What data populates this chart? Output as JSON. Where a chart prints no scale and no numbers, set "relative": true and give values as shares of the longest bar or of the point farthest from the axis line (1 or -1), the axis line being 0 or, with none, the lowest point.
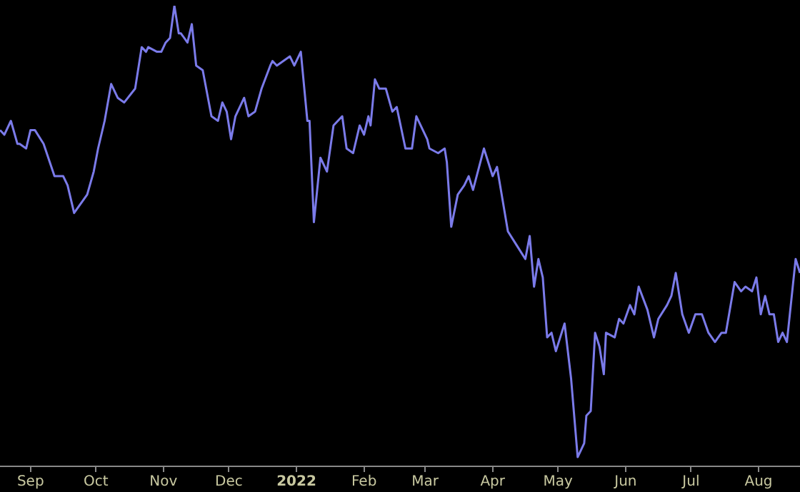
{
  "chart_data": {
    "type": "line",
    "relative": true,
    "grid": false,
    "legend": false,
    "marker": "none",
    "line_style": "solid",
    "tick_labels": "x",
    "xlim": [
      "2021-08-18",
      "2022-08-20"
    ],
    "xticks": [
      {
        "value": "2021-09",
        "label": "Sep"
      },
      {
        "value": "2021-10",
        "label": "Oct"
      },
      {
        "value": "2021-11",
        "label": "Nov"
      },
      {
        "value": "2021-12",
        "label": "Dec"
      },
      {
        "value": "2022",
        "label": "2022"
      },
      {
        "value": "2022-02",
        "label": "Feb"
      },
      {
        "value": "2022-03",
        "label": "Mar"
      },
      {
        "value": "2022-04",
        "label": "Apr"
      },
      {
        "value": "2022-05",
        "label": "May"
      },
      {
        "value": "2022-06",
        "label": "Jun"
      },
      {
        "value": "2022-07",
        "label": "Jul"
      },
      {
        "value": "2022-08",
        "label": "Aug"
      }
    ],
    "series": [
      {
        "color": "#7b7bea",
        "x": [
          "2021-08-18",
          "2021-08-20",
          "2021-08-23",
          "2021-08-26",
          "2021-08-27",
          "2021-08-30",
          "2021-09-01",
          "2021-09-03",
          "2021-09-07",
          "2021-09-12",
          "2021-09-16",
          "2021-09-18",
          "2021-09-21",
          "2021-09-27",
          "2021-09-30",
          "2021-10-02",
          "2021-10-05",
          "2021-10-08",
          "2021-10-11",
          "2021-10-14",
          "2021-10-19",
          "2021-10-22",
          "2021-10-24",
          "2021-10-25",
          "2021-10-29",
          "2021-10-31",
          "2021-11-02",
          "2021-11-04",
          "2021-11-06",
          "2021-11-08",
          "2021-11-09",
          "2021-11-12",
          "2021-11-14",
          "2021-11-16",
          "2021-11-19",
          "2021-11-23",
          "2021-11-26",
          "2021-11-28",
          "2021-11-30",
          "2021-12-02",
          "2021-12-04",
          "2021-12-08",
          "2021-12-10",
          "2021-12-13",
          "2021-12-16",
          "2021-12-20",
          "2021-12-21",
          "2021-12-23",
          "2021-12-26",
          "2021-12-29",
          "2021-12-31",
          "2022-01-03",
          "2022-01-06",
          "2022-01-07",
          "2022-01-09",
          "2022-01-12",
          "2022-01-15",
          "2022-01-18",
          "2022-01-22",
          "2022-01-24",
          "2022-01-27",
          "2022-01-30",
          "2022-02-01",
          "2022-02-03",
          "2022-02-04",
          "2022-02-06",
          "2022-02-08",
          "2022-02-11",
          "2022-02-14",
          "2022-02-16",
          "2022-02-20",
          "2022-02-23",
          "2022-02-25",
          "2022-03-02",
          "2022-03-03",
          "2022-03-07",
          "2022-03-10",
          "2022-03-11",
          "2022-03-13",
          "2022-03-16",
          "2022-03-19",
          "2022-03-21",
          "2022-03-23",
          "2022-03-28",
          "2022-04-01",
          "2022-04-03",
          "2022-04-08",
          "2022-04-12",
          "2022-04-16",
          "2022-04-18",
          "2022-04-20",
          "2022-04-22",
          "2022-04-24",
          "2022-04-26",
          "2022-04-28",
          "2022-04-30",
          "2022-05-02",
          "2022-05-04",
          "2022-05-07",
          "2022-05-10",
          "2022-05-13",
          "2022-05-14",
          "2022-05-16",
          "2022-05-18",
          "2022-05-20",
          "2022-05-22",
          "2022-05-23",
          "2022-05-27",
          "2022-05-29",
          "2022-05-31",
          "2022-06-03",
          "2022-06-05",
          "2022-06-07",
          "2022-06-11",
          "2022-06-14",
          "2022-06-16",
          "2022-06-20",
          "2022-06-22",
          "2022-06-24",
          "2022-06-27",
          "2022-06-30",
          "2022-07-03",
          "2022-07-06",
          "2022-07-09",
          "2022-07-12",
          "2022-07-15",
          "2022-07-17",
          "2022-07-21",
          "2022-07-24",
          "2022-07-26",
          "2022-07-29",
          "2022-07-31",
          "2022-08-02",
          "2022-08-04",
          "2022-08-06",
          "2022-08-08",
          "2022-08-10",
          "2022-08-12",
          "2022-08-14",
          "2022-08-18",
          "2022-08-20"
        ],
        "values": [
          0.73,
          0.72,
          0.75,
          0.7,
          0.7,
          0.69,
          0.73,
          0.73,
          0.7,
          0.63,
          0.63,
          0.61,
          0.55,
          0.59,
          0.64,
          0.69,
          0.75,
          0.83,
          0.8,
          0.79,
          0.82,
          0.91,
          0.9,
          0.91,
          0.9,
          0.9,
          0.92,
          0.93,
          1,
          0.94,
          0.94,
          0.92,
          0.96,
          0.87,
          0.86,
          0.76,
          0.75,
          0.79,
          0.77,
          0.71,
          0.76,
          0.8,
          0.76,
          0.77,
          0.82,
          0.87,
          0.88,
          0.87,
          0.88,
          0.89,
          0.87,
          0.9,
          0.75,
          0.75,
          0.53,
          0.67,
          0.64,
          0.74,
          0.76,
          0.69,
          0.68,
          0.74,
          0.72,
          0.76,
          0.74,
          0.84,
          0.82,
          0.82,
          0.77,
          0.78,
          0.69,
          0.69,
          0.76,
          0.71,
          0.69,
          0.68,
          0.69,
          0.66,
          0.52,
          0.59,
          0.61,
          0.63,
          0.6,
          0.69,
          0.63,
          0.65,
          0.51,
          0.48,
          0.45,
          0.5,
          0.39,
          0.45,
          0.41,
          0.28,
          0.29,
          0.25,
          0.28,
          0.31,
          0.19,
          0.02,
          0.05,
          0.11,
          0.12,
          0.29,
          0.26,
          0.2,
          0.29,
          0.28,
          0.32,
          0.31,
          0.35,
          0.33,
          0.39,
          0.34,
          0.28,
          0.32,
          0.35,
          0.37,
          0.42,
          0.33,
          0.29,
          0.33,
          0.33,
          0.29,
          0.27,
          0.29,
          0.29,
          0.4,
          0.38,
          0.39,
          0.38,
          0.41,
          0.33,
          0.37,
          0.33,
          0.33,
          0.27,
          0.29,
          0.27,
          0.45,
          0.42
        ]
      }
    ]
  }
}
